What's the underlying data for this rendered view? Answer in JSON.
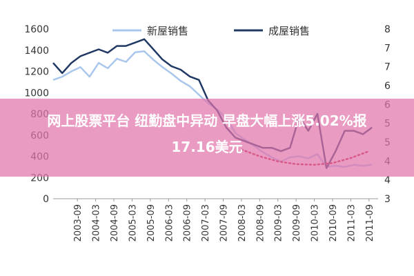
{
  "chart_data": {
    "type": "line",
    "legend": {
      "placement": "top",
      "entries": [
        {
          "name": "新屋销售",
          "color": "#a9c7ec"
        },
        {
          "name": "成屋销售",
          "color": "#1f3864"
        }
      ]
    },
    "left_axis": {
      "ticks": [
        "0",
        "200",
        "400",
        "600",
        "800",
        "1000",
        "1200",
        "1400",
        "1600"
      ],
      "range": [
        0,
        1600
      ]
    },
    "right_axis": {
      "ticks": [
        "3",
        "4",
        "4",
        "5",
        "5",
        "6",
        "6",
        "7",
        "7",
        "8"
      ],
      "range": [
        3,
        8
      ]
    },
    "x_ticks": [
      "2003-09",
      "2004-03",
      "2004-09",
      "2005-03",
      "2005-09",
      "2006-03",
      "2006-09",
      "2007-03",
      "2007-09",
      "2008-03",
      "2008-09",
      "2009-03",
      "2009-09",
      "2010-03",
      "2010-09",
      "2011-03",
      "2011-09"
    ],
    "series": [
      {
        "name": "新屋销售",
        "axis": "left",
        "color": "#a9c7ec",
        "x": [
          "2003-01",
          "2003-04",
          "2003-07",
          "2003-10",
          "2004-01",
          "2004-04",
          "2004-07",
          "2004-10",
          "2005-01",
          "2005-04",
          "2005-07",
          "2005-10",
          "2006-01",
          "2006-04",
          "2006-07",
          "2006-10",
          "2007-01",
          "2007-04",
          "2007-07",
          "2007-10",
          "2008-01",
          "2008-04",
          "2008-07",
          "2008-10",
          "2009-01",
          "2009-04",
          "2009-07",
          "2009-10",
          "2010-01",
          "2010-04",
          "2010-07",
          "2010-10",
          "2011-01",
          "2011-04",
          "2011-07",
          "2011-10"
        ],
        "values": [
          1120,
          1150,
          1200,
          1240,
          1150,
          1280,
          1230,
          1320,
          1290,
          1380,
          1390,
          1310,
          1240,
          1180,
          1110,
          1060,
          980,
          900,
          840,
          760,
          620,
          560,
          500,
          440,
          390,
          350,
          390,
          400,
          380,
          420,
          300,
          310,
          300,
          320,
          310,
          320
        ]
      },
      {
        "name": "成屋销售",
        "axis": "right",
        "color": "#1f3864",
        "x": [
          "2003-01",
          "2003-04",
          "2003-07",
          "2003-10",
          "2004-01",
          "2004-04",
          "2004-07",
          "2004-10",
          "2005-01",
          "2005-04",
          "2005-07",
          "2005-10",
          "2006-01",
          "2006-04",
          "2006-07",
          "2006-10",
          "2007-01",
          "2007-04",
          "2007-07",
          "2007-10",
          "2008-01",
          "2008-04",
          "2008-07",
          "2008-10",
          "2009-01",
          "2009-04",
          "2009-07",
          "2009-10",
          "2010-01",
          "2010-04",
          "2010-07",
          "2010-10",
          "2011-01",
          "2011-04",
          "2011-07",
          "2011-10"
        ],
        "values": [
          7.0,
          6.7,
          7.0,
          7.2,
          7.3,
          7.4,
          7.3,
          7.5,
          7.5,
          7.6,
          7.7,
          7.4,
          7.1,
          6.9,
          6.8,
          6.6,
          6.5,
          5.9,
          5.6,
          5.1,
          4.8,
          4.7,
          4.6,
          4.5,
          4.5,
          4.4,
          4.5,
          5.4,
          5.0,
          5.5,
          3.9,
          4.4,
          5.0,
          5.0,
          4.9,
          5.1
        ]
      },
      {
        "name": "",
        "axis": "right",
        "color": "#c0152f",
        "dashed": true,
        "x": [
          "2008-03",
          "2008-09",
          "2009-03",
          "2009-09",
          "2010-03",
          "2010-09",
          "2011-03",
          "2011-09"
        ],
        "values": [
          4.45,
          4.25,
          4.1,
          4.02,
          4.0,
          4.05,
          4.2,
          4.4
        ]
      }
    ]
  },
  "banner": {
    "line1": "网上股票平台 纽勤盘中异动 早盘大幅上涨5.02%报",
    "line2": "17.16美元"
  }
}
